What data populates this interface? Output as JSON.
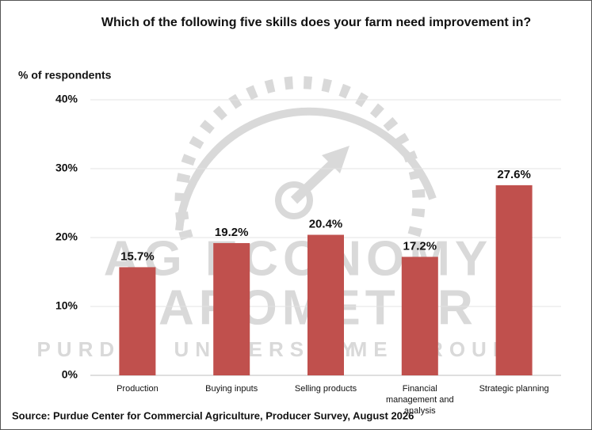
{
  "chart_data": {
    "type": "bar",
    "title": "Which of the following five skills does your farm need improvement in?",
    "y_label": "% of respondents",
    "categories": [
      "Production",
      "Buying inputs",
      "Selling products",
      "Financial management and analysis",
      "Strategic planning"
    ],
    "values": [
      15.7,
      19.2,
      20.4,
      17.2,
      27.6
    ],
    "value_labels": [
      "15.7%",
      "19.2%",
      "20.4%",
      "17.2%",
      "27.6%"
    ],
    "color": "#c0504d",
    "ylim": [
      0,
      40
    ],
    "yticks": [
      {
        "value": 0,
        "label": "0%"
      },
      {
        "value": 10,
        "label": "10%"
      },
      {
        "value": 20,
        "label": "20%"
      },
      {
        "value": 30,
        "label": "30%"
      },
      {
        "value": 40,
        "label": "40%"
      }
    ],
    "grid": true,
    "watermark": [
      "AG ECONOMY",
      "BAROMETER",
      "PURDUE UNIVERSITY",
      "CME GROUP"
    ],
    "source": "Source: Purdue Center for Commercial Agriculture, Producer Survey, August 2026"
  }
}
